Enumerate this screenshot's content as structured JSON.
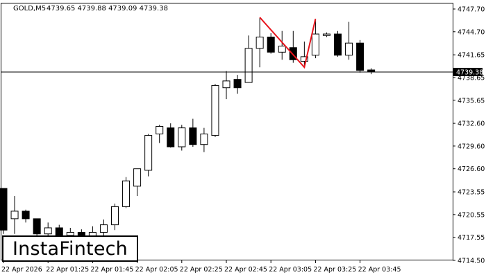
{
  "header": {
    "symbol": "GOLD,M5",
    "ohlc": "4739.65 4739.88 4739.09 4739.38"
  },
  "logo": {
    "text": "InstaFintech"
  },
  "chart_data": {
    "type": "candlestick",
    "ylim": [
      4714.5,
      4747.7
    ],
    "yticks": [
      "4747.70",
      "4744.70",
      "4741.65",
      "4738.65",
      "4735.65",
      "4732.60",
      "4729.60",
      "4726.60",
      "4723.55",
      "4720.55",
      "4717.55",
      "4714.50"
    ],
    "xticks": [
      {
        "index": 0,
        "label": "22 Apr 2026"
      },
      {
        "index": 4,
        "label": "22 Apr 01:25"
      },
      {
        "index": 8,
        "label": "22 Apr 01:45"
      },
      {
        "index": 12,
        "label": "22 Apr 02:05"
      },
      {
        "index": 16,
        "label": "22 Apr 02:25"
      },
      {
        "index": 20,
        "label": "22 Apr 02:45"
      },
      {
        "index": 24,
        "label": "22 Apr 03:05"
      },
      {
        "index": 28,
        "label": "22 Apr 03:25"
      },
      {
        "index": 32,
        "label": "22 Apr 03:45"
      }
    ],
    "current_price": "4739.38",
    "price_line": 4739.38,
    "candles": [
      {
        "o": 4724.0,
        "h": 4724.0,
        "l": 4718.0,
        "c": 4718.5
      },
      {
        "o": 4720.0,
        "h": 4723.0,
        "l": 4718.0,
        "c": 4721.0
      },
      {
        "o": 4721.0,
        "h": 4721.2,
        "l": 4719.5,
        "c": 4720.0
      },
      {
        "o": 4720.0,
        "h": 4720.0,
        "l": 4717.8,
        "c": 4718.0
      },
      {
        "o": 4718.0,
        "h": 4719.5,
        "l": 4716.5,
        "c": 4718.8
      },
      {
        "o": 4718.8,
        "h": 4719.2,
        "l": 4716.8,
        "c": 4717.8
      },
      {
        "o": 4717.8,
        "h": 4718.8,
        "l": 4716.5,
        "c": 4718.2
      },
      {
        "o": 4718.2,
        "h": 4718.6,
        "l": 4716.5,
        "c": 4717.5
      },
      {
        "o": 4717.5,
        "h": 4719.0,
        "l": 4716.8,
        "c": 4718.2
      },
      {
        "o": 4718.2,
        "h": 4719.9,
        "l": 4717.6,
        "c": 4719.2
      },
      {
        "o": 4719.2,
        "h": 4722.0,
        "l": 4718.5,
        "c": 4721.6
      },
      {
        "o": 4721.6,
        "h": 4725.5,
        "l": 4721.4,
        "c": 4725.0
      },
      {
        "o": 4724.3,
        "h": 4726.6,
        "l": 4723.0,
        "c": 4726.6
      },
      {
        "o": 4726.4,
        "h": 4731.2,
        "l": 4725.6,
        "c": 4731.0
      },
      {
        "o": 4731.2,
        "h": 4732.4,
        "l": 4730.0,
        "c": 4732.2
      },
      {
        "o": 4732.0,
        "h": 4732.6,
        "l": 4729.4,
        "c": 4729.5
      },
      {
        "o": 4729.5,
        "h": 4732.4,
        "l": 4729.0,
        "c": 4732.0
      },
      {
        "o": 4732.0,
        "h": 4733.2,
        "l": 4729.5,
        "c": 4729.8
      },
      {
        "o": 4729.8,
        "h": 4732.0,
        "l": 4728.8,
        "c": 4731.2
      },
      {
        "o": 4731.0,
        "h": 4737.8,
        "l": 4730.8,
        "c": 4737.6
      },
      {
        "o": 4737.3,
        "h": 4739.5,
        "l": 4735.8,
        "c": 4738.2
      },
      {
        "o": 4738.4,
        "h": 4739.0,
        "l": 4736.5,
        "c": 4737.3
      },
      {
        "o": 4738.0,
        "h": 4744.2,
        "l": 4738.0,
        "c": 4742.5
      },
      {
        "o": 4742.5,
        "h": 4746.5,
        "l": 4740.0,
        "c": 4744.0
      },
      {
        "o": 4744.0,
        "h": 4744.5,
        "l": 4741.8,
        "c": 4742.0
      },
      {
        "o": 4742.0,
        "h": 4744.8,
        "l": 4741.0,
        "c": 4742.8
      },
      {
        "o": 4742.6,
        "h": 4744.8,
        "l": 4740.6,
        "c": 4741.0
      },
      {
        "o": 4740.8,
        "h": 4743.4,
        "l": 4740.0,
        "c": 4741.4
      },
      {
        "o": 4741.6,
        "h": 4746.4,
        "l": 4741.2,
        "c": 4744.4
      },
      {
        "o": 4744.2,
        "h": 4744.6,
        "l": 4744.0,
        "c": 4744.4
      },
      {
        "o": 4744.4,
        "h": 4744.8,
        "l": 4741.4,
        "c": 4741.6
      },
      {
        "o": 4741.6,
        "h": 4746.0,
        "l": 4741.0,
        "c": 4743.2
      },
      {
        "o": 4743.2,
        "h": 4743.6,
        "l": 4739.3,
        "c": 4739.6
      },
      {
        "o": 4739.65,
        "h": 4739.88,
        "l": 4739.09,
        "c": 4739.38
      }
    ],
    "pattern": {
      "color": "#e8141c",
      "points": [
        {
          "index": 23,
          "value": 4746.6
        },
        {
          "index": 27,
          "value": 4740.0
        },
        {
          "index": 28,
          "value": 4746.4
        }
      ]
    },
    "colors": {
      "bull_fill": "#ffffff",
      "bear_fill": "#000000",
      "outline": "#000000",
      "grid": "#000000"
    }
  }
}
